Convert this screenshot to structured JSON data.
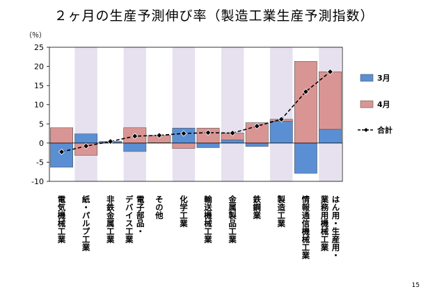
{
  "page": {
    "number": "15"
  },
  "chart_data": {
    "type": "bar",
    "title": "２ヶ月の生産予測伸び率（製造工業生産予測指数）",
    "ylabel": "（％）",
    "ylim": [
      -10,
      25
    ],
    "yticks": [
      -10,
      -5,
      0,
      5,
      10,
      15,
      20,
      25
    ],
    "grid": false,
    "stacked": true,
    "legend_position": "right",
    "categories": [
      [
        "電気機械工業"
      ],
      [
        "紙・パルプ工業"
      ],
      [
        "非鉄金属工業"
      ],
      [
        "電子部品・",
        "デバイス工業"
      ],
      [
        "その他"
      ],
      [
        "化学工業"
      ],
      [
        "輸送機械工業"
      ],
      [
        "金属製品工業"
      ],
      [
        "鉄鋼業"
      ],
      [
        "製造工業"
      ],
      [
        "情報通信機械工業"
      ],
      [
        "はん用・生産用・",
        "業務用機械工業"
      ]
    ],
    "series": [
      {
        "name": "3月",
        "type": "bar",
        "color": "#5b8fd4",
        "values": [
          -6.3,
          2.4,
          0.3,
          -2.2,
          0.1,
          3.9,
          -1.2,
          0.8,
          -0.9,
          5.7,
          -7.9,
          3.6
        ]
      },
      {
        "name": "4月",
        "type": "bar",
        "color": "#d99594",
        "values": [
          4.0,
          -3.2,
          0.1,
          4.0,
          1.9,
          -1.4,
          3.9,
          1.8,
          5.3,
          0.5,
          21.3,
          15.0
        ]
      },
      {
        "name": "合計",
        "type": "line",
        "color": "#000000",
        "values": [
          -2.3,
          -0.8,
          0.4,
          1.8,
          2.0,
          2.5,
          2.7,
          2.6,
          4.4,
          6.2,
          13.4,
          18.6
        ]
      }
    ]
  }
}
